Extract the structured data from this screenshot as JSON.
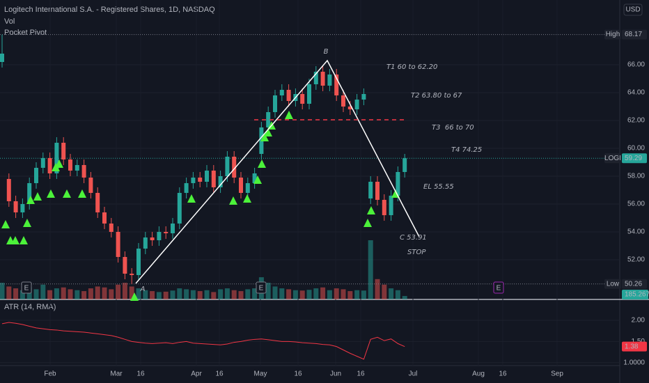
{
  "header": {
    "title": "Logitech International S.A. - Registered Shares, 1D, NASDAQ",
    "currency": "USD",
    "indicators": [
      "Vol",
      "Pocket Pivot"
    ]
  },
  "chart_data": {
    "type": "candlestick",
    "open": [
      66.2,
      57.8,
      56.2,
      55.4,
      56.0,
      57.5,
      58.6,
      59.3,
      58.2,
      60.4,
      59.2,
      58.4,
      58.8,
      57.9,
      56.8,
      55.4,
      54.6,
      54.0,
      52.2,
      51.0,
      50.9,
      52.8,
      53.6,
      53.4,
      54.0,
      53.9,
      54.6,
      56.8,
      57.5,
      57.9,
      57.6,
      58.4,
      57.2,
      58.0,
      59.4,
      57.9,
      56.8,
      57.5,
      59.6,
      61.5,
      62.6,
      63.8,
      64.2,
      63.4,
      63.9,
      63.2,
      64.6,
      65.5,
      64.5,
      65.3,
      63.8,
      63.0,
      62.8,
      63.5,
      56.4,
      57.6,
      56.3,
      55.2,
      56.6,
      58.3
    ],
    "high": [
      68.17,
      58.2,
      56.6,
      56.4,
      57.9,
      59.0,
      59.7,
      59.7,
      60.8,
      60.8,
      59.6,
      59.2,
      59.2,
      58.3,
      57.2,
      55.8,
      55.0,
      54.4,
      52.6,
      51.4,
      53.2,
      54.0,
      54.0,
      54.4,
      54.4,
      55.0,
      57.2,
      57.9,
      58.3,
      58.3,
      58.8,
      58.8,
      58.4,
      59.8,
      59.8,
      58.3,
      57.9,
      58.6,
      61.9,
      63.0,
      64.2,
      64.6,
      64.6,
      64.3,
      64.3,
      65.0,
      65.9,
      65.9,
      65.7,
      65.7,
      64.2,
      63.4,
      63.9,
      64.3,
      58.0,
      58.0,
      56.7,
      57.0,
      58.7,
      59.6
    ],
    "low": [
      65.8,
      55.8,
      55.0,
      55.0,
      55.6,
      57.1,
      58.2,
      57.8,
      57.8,
      58.8,
      58.0,
      58.0,
      57.5,
      56.4,
      55.0,
      54.2,
      53.6,
      51.8,
      50.6,
      50.26,
      50.5,
      52.4,
      53.0,
      53.0,
      53.5,
      53.5,
      54.2,
      56.4,
      57.1,
      57.2,
      57.2,
      56.8,
      56.8,
      57.6,
      57.5,
      56.4,
      56.4,
      57.1,
      59.2,
      61.1,
      62.2,
      63.4,
      63.0,
      63.0,
      62.8,
      62.8,
      64.2,
      64.1,
      64.1,
      63.4,
      62.6,
      62.4,
      62.4,
      63.1,
      56.0,
      55.9,
      54.8,
      54.8,
      56.2,
      57.9
    ],
    "close": [
      66.8,
      56.2,
      55.4,
      56.0,
      57.5,
      58.6,
      59.3,
      58.2,
      60.4,
      59.2,
      58.4,
      58.8,
      57.9,
      56.8,
      55.4,
      54.6,
      54.0,
      52.2,
      51.0,
      50.9,
      52.8,
      53.6,
      53.4,
      54.0,
      53.9,
      54.6,
      56.8,
      57.5,
      57.9,
      57.6,
      58.4,
      57.2,
      58.0,
      59.4,
      57.9,
      56.8,
      57.5,
      58.2,
      61.5,
      62.6,
      63.8,
      64.2,
      63.4,
      63.9,
      63.2,
      64.6,
      65.5,
      64.5,
      65.3,
      63.8,
      63.0,
      62.8,
      63.5,
      63.9,
      57.6,
      56.3,
      55.2,
      56.6,
      58.3,
      59.29
    ],
    "up_color": "#26a69a",
    "down_color": "#ef5350",
    "ylim": [
      49.15,
      70.65
    ],
    "yticks": [
      {
        "value": 52,
        "label": "52.00"
      },
      {
        "value": 54,
        "label": "54.00"
      },
      {
        "value": 56,
        "label": "56.00"
      },
      {
        "value": 58,
        "label": "58.00"
      },
      {
        "value": 60,
        "label": "60.00"
      },
      {
        "value": 62,
        "label": "62.00"
      },
      {
        "value": 64,
        "label": "64.00"
      },
      {
        "value": 66,
        "label": "66.00"
      }
    ],
    "x_labels": [
      "Feb",
      "Mar",
      "16",
      "Apr",
      "16",
      "May",
      "16",
      "Jun",
      "16",
      "Jul",
      "Aug",
      "16",
      "Sep"
    ],
    "high_label": "High",
    "high_value": 68.17,
    "symbol": "LOGI",
    "last_price": 59.29,
    "low_label": "Low",
    "low_value": 50.26,
    "volume": [
      900,
      700,
      600,
      500,
      650,
      550,
      800,
      500,
      600,
      650,
      550,
      500,
      450,
      600,
      700,
      650,
      550,
      800,
      900,
      700,
      600,
      500,
      450,
      400,
      420,
      480,
      600,
      550,
      500,
      450,
      500,
      400,
      550,
      600,
      500,
      450,
      550,
      600,
      1200,
      900,
      700,
      600,
      550,
      500,
      480,
      520,
      600,
      650,
      500,
      600,
      550,
      450,
      500,
      480,
      3200,
      1100,
      800,
      600,
      500,
      185.267
    ],
    "volume_readout": {
      "value": 185.267,
      "label": "185.267K"
    },
    "atr": {
      "title": "ATR (14, RMA)",
      "color": "#f23645",
      "values": [
        1.92,
        1.95,
        1.93,
        1.9,
        1.86,
        1.82,
        1.8,
        1.78,
        1.77,
        1.75,
        1.74,
        1.73,
        1.72,
        1.7,
        1.68,
        1.66,
        1.64,
        1.6,
        1.55,
        1.5,
        1.48,
        1.46,
        1.45,
        1.46,
        1.47,
        1.45,
        1.48,
        1.5,
        1.46,
        1.45,
        1.44,
        1.43,
        1.42,
        1.44,
        1.48,
        1.5,
        1.53,
        1.55,
        1.56,
        1.54,
        1.52,
        1.5,
        1.5,
        1.49,
        1.47,
        1.46,
        1.45,
        1.43,
        1.42,
        1.38,
        1.3,
        1.22,
        1.15,
        1.08,
        1.55,
        1.6,
        1.52,
        1.56,
        1.45,
        1.38
      ],
      "ylim": [
        0.93,
        2.46
      ],
      "yticks": [
        {
          "value": 2,
          "label": "2.00"
        },
        {
          "value": 1.5,
          "label": "1.50"
        },
        {
          "value": 1,
          "label": "1.0000"
        }
      ],
      "last": 1.38
    },
    "annotations": {
      "point_a": "A",
      "point_b": "B",
      "t1": "T1 60 to 62.20",
      "t2": "T2 63.80 to 67",
      "t3": "T3  66 to 70",
      "t4": "T4 74.25",
      "el": "EL 55.55",
      "c": "C 53.91",
      "stop": "STOP",
      "earnings": "E"
    }
  }
}
